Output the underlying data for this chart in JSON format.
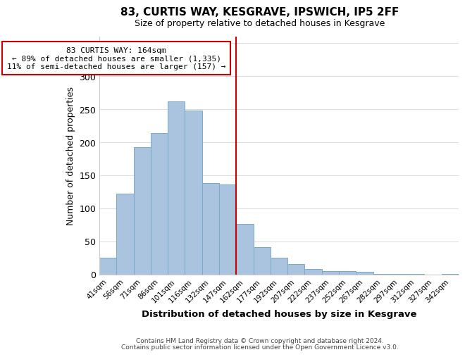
{
  "title1": "83, CURTIS WAY, KESGRAVE, IPSWICH, IP5 2FF",
  "title2": "Size of property relative to detached houses in Kesgrave",
  "xlabel": "Distribution of detached houses by size in Kesgrave",
  "ylabel": "Number of detached properties",
  "bar_labels": [
    "41sqm",
    "56sqm",
    "71sqm",
    "86sqm",
    "101sqm",
    "116sqm",
    "132sqm",
    "147sqm",
    "162sqm",
    "177sqm",
    "192sqm",
    "207sqm",
    "222sqm",
    "237sqm",
    "252sqm",
    "267sqm",
    "282sqm",
    "297sqm",
    "312sqm",
    "327sqm",
    "342sqm"
  ],
  "bar_values": [
    25,
    122,
    193,
    214,
    262,
    248,
    138,
    136,
    76,
    41,
    25,
    16,
    8,
    5,
    5,
    4,
    1,
    1,
    1,
    0,
    1
  ],
  "bar_color": "#aac4e0",
  "bar_edge_color": "#7aaac8",
  "vline_index": 8,
  "vline_color": "#cc0000",
  "annotation_title": "83 CURTIS WAY: 164sqm",
  "annotation_line1": "← 89% of detached houses are smaller (1,335)",
  "annotation_line2": "11% of semi-detached houses are larger (157) →",
  "annotation_box_color": "#ffffff",
  "annotation_box_edgecolor": "#cc0000",
  "ylim": [
    0,
    360
  ],
  "yticks": [
    0,
    50,
    100,
    150,
    200,
    250,
    300,
    350
  ],
  "footer1": "Contains HM Land Registry data © Crown copyright and database right 2024.",
  "footer2": "Contains public sector information licensed under the Open Government Licence v3.0.",
  "background_color": "#ffffff",
  "grid_color": "#dddddd"
}
